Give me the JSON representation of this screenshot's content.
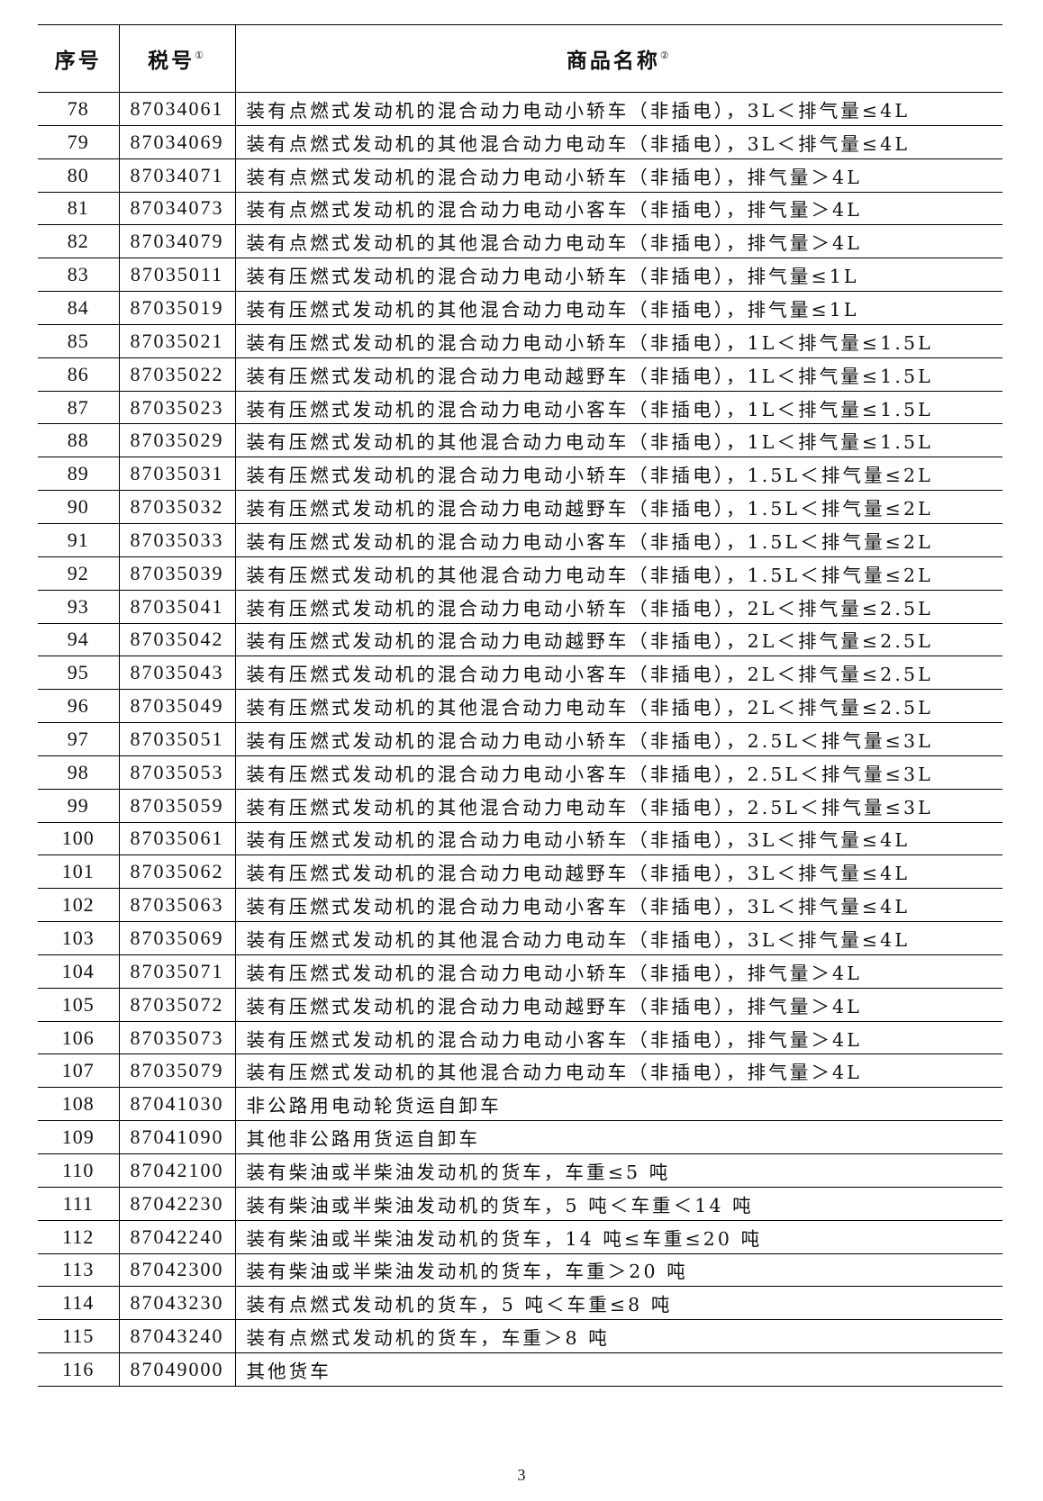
{
  "header": {
    "seq": "序号",
    "code": "税号",
    "code_note": "①",
    "name": "商品名称",
    "name_note": "②"
  },
  "rows": [
    [
      "78",
      "87034061",
      "装有点燃式发动机的混合动力电动小轿车（非插电），3L＜排气量≤4L"
    ],
    [
      "79",
      "87034069",
      "装有点燃式发动机的其他混合动力电动车（非插电），3L＜排气量≤4L"
    ],
    [
      "80",
      "87034071",
      "装有点燃式发动机的混合动力电动小轿车（非插电），排气量＞4L"
    ],
    [
      "81",
      "87034073",
      "装有点燃式发动机的混合动力电动小客车（非插电），排气量＞4L"
    ],
    [
      "82",
      "87034079",
      "装有点燃式发动机的其他混合动力电动车（非插电），排气量＞4L"
    ],
    [
      "83",
      "87035011",
      "装有压燃式发动机的混合动力电动小轿车（非插电），排气量≤1L"
    ],
    [
      "84",
      "87035019",
      "装有压燃式发动机的其他混合动力电动车（非插电），排气量≤1L"
    ],
    [
      "85",
      "87035021",
      "装有压燃式发动机的混合动力电动小轿车（非插电），1L＜排气量≤1.5L"
    ],
    [
      "86",
      "87035022",
      "装有压燃式发动机的混合动力电动越野车（非插电），1L＜排气量≤1.5L"
    ],
    [
      "87",
      "87035023",
      "装有压燃式发动机的混合动力电动小客车（非插电），1L＜排气量≤1.5L"
    ],
    [
      "88",
      "87035029",
      "装有压燃式发动机的其他混合动力电动车（非插电），1L＜排气量≤1.5L"
    ],
    [
      "89",
      "87035031",
      "装有压燃式发动机的混合动力电动小轿车（非插电），1.5L＜排气量≤2L"
    ],
    [
      "90",
      "87035032",
      "装有压燃式发动机的混合动力电动越野车（非插电），1.5L＜排气量≤2L"
    ],
    [
      "91",
      "87035033",
      "装有压燃式发动机的混合动力电动小客车（非插电），1.5L＜排气量≤2L"
    ],
    [
      "92",
      "87035039",
      "装有压燃式发动机的其他混合动力电动车（非插电），1.5L＜排气量≤2L"
    ],
    [
      "93",
      "87035041",
      "装有压燃式发动机的混合动力电动小轿车（非插电），2L＜排气量≤2.5L"
    ],
    [
      "94",
      "87035042",
      "装有压燃式发动机的混合动力电动越野车（非插电），2L＜排气量≤2.5L"
    ],
    [
      "95",
      "87035043",
      "装有压燃式发动机的混合动力电动小客车（非插电），2L＜排气量≤2.5L"
    ],
    [
      "96",
      "87035049",
      "装有压燃式发动机的其他混合动力电动车（非插电），2L＜排气量≤2.5L"
    ],
    [
      "97",
      "87035051",
      "装有压燃式发动机的混合动力电动小轿车（非插电），2.5L＜排气量≤3L"
    ],
    [
      "98",
      "87035053",
      "装有压燃式发动机的混合动力电动小客车（非插电），2.5L＜排气量≤3L"
    ],
    [
      "99",
      "87035059",
      "装有压燃式发动机的其他混合动力电动车（非插电），2.5L＜排气量≤3L"
    ],
    [
      "100",
      "87035061",
      "装有压燃式发动机的混合动力电动小轿车（非插电），3L＜排气量≤4L"
    ],
    [
      "101",
      "87035062",
      "装有压燃式发动机的混合动力电动越野车（非插电），3L＜排气量≤4L"
    ],
    [
      "102",
      "87035063",
      "装有压燃式发动机的混合动力电动小客车（非插电），3L＜排气量≤4L"
    ],
    [
      "103",
      "87035069",
      "装有压燃式发动机的其他混合动力电动车（非插电），3L＜排气量≤4L"
    ],
    [
      "104",
      "87035071",
      "装有压燃式发动机的混合动力电动小轿车（非插电），排气量＞4L"
    ],
    [
      "105",
      "87035072",
      "装有压燃式发动机的混合动力电动越野车（非插电），排气量＞4L"
    ],
    [
      "106",
      "87035073",
      "装有压燃式发动机的混合动力电动小客车（非插电），排气量＞4L"
    ],
    [
      "107",
      "87035079",
      "装有压燃式发动机的其他混合动力电动车（非插电），排气量＞4L"
    ],
    [
      "108",
      "87041030",
      "非公路用电动轮货运自卸车"
    ],
    [
      "109",
      "87041090",
      "其他非公路用货运自卸车"
    ],
    [
      "110",
      "87042100",
      "装有柴油或半柴油发动机的货车，车重≤5 吨"
    ],
    [
      "111",
      "87042230",
      "装有柴油或半柴油发动机的货车，5 吨＜车重＜14 吨"
    ],
    [
      "112",
      "87042240",
      "装有柴油或半柴油发动机的货车，14 吨≤车重≤20 吨"
    ],
    [
      "113",
      "87042300",
      "装有柴油或半柴油发动机的货车，车重＞20 吨"
    ],
    [
      "114",
      "87043230",
      "装有点燃式发动机的货车，5 吨＜车重≤8 吨"
    ],
    [
      "115",
      "87043240",
      "装有点燃式发动机的货车，车重＞8 吨"
    ],
    [
      "116",
      "87049000",
      "其他货车"
    ]
  ],
  "page_number": "3"
}
